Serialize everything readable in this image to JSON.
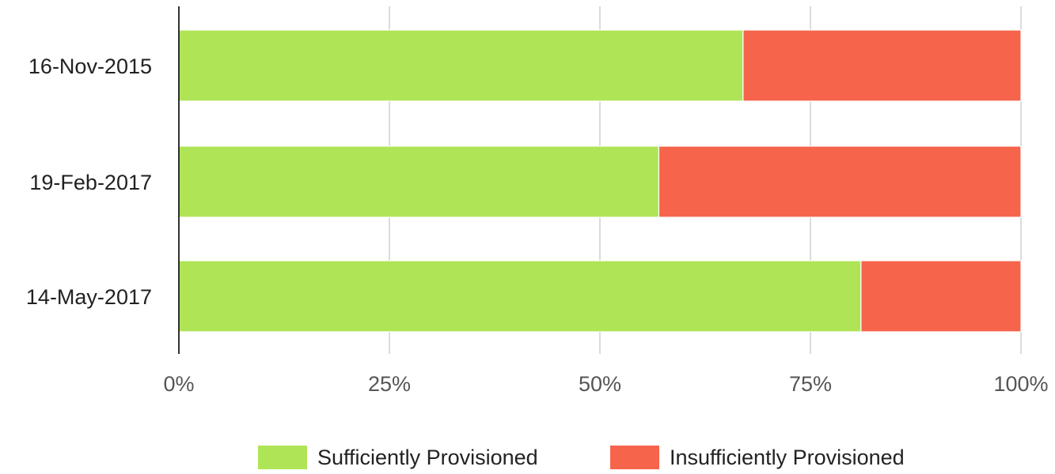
{
  "chart_data": {
    "type": "bar",
    "orientation": "horizontal",
    "stacked": true,
    "percent_scale": true,
    "categories": [
      "16-Nov-2015",
      "19-Feb-2017",
      "14-May-2017"
    ],
    "series": [
      {
        "name": "Sufficiently Provisioned",
        "color": "#b0e457",
        "values": [
          67,
          57,
          81
        ]
      },
      {
        "name": "Insufficiently Provisioned",
        "color": "#f5644b",
        "values": [
          33,
          43,
          19
        ]
      }
    ],
    "x_ticks": [
      "0%",
      "25%",
      "50%",
      "75%",
      "100%"
    ],
    "x_tick_values": [
      0,
      25,
      50,
      75,
      100
    ],
    "xlim": [
      0,
      100
    ],
    "title": "",
    "xlabel": "",
    "ylabel": "",
    "grid": "vertical",
    "legend_position": "bottom"
  }
}
